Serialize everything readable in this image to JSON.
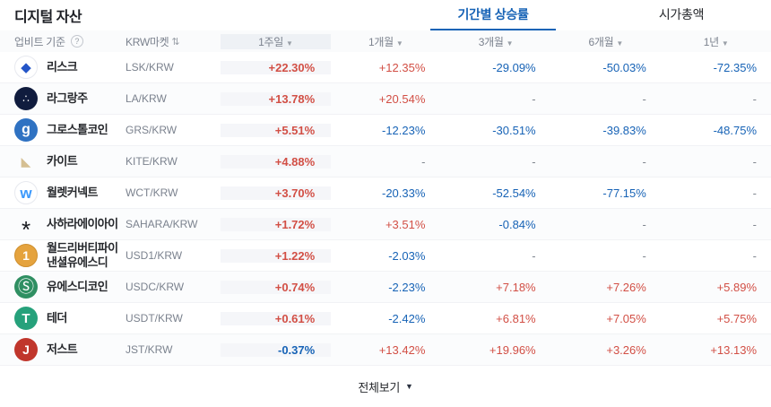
{
  "header": {
    "title": "디지털 자산",
    "tabs": [
      {
        "label": "기간별 상승률",
        "active": true
      },
      {
        "label": "시가총액",
        "active": false
      }
    ]
  },
  "table": {
    "basis_label": "업비트 기준",
    "market_label": "KRW마켓",
    "periods": [
      "1주일",
      "1개월",
      "3개월",
      "6개월",
      "1년"
    ],
    "rows": [
      {
        "name": "리스크",
        "ticker": "LSK/KRW",
        "icon": {
          "name": "lisk",
          "glyph": "◆",
          "bg": "#ffffff",
          "fg": "#2456c8",
          "border": "#e7e9ef",
          "size": 15
        },
        "values": [
          "+22.30%",
          "+12.35%",
          "-29.09%",
          "-50.03%",
          "-72.35%"
        ]
      },
      {
        "name": "라그랑주",
        "ticker": "LA/KRW",
        "icon": {
          "name": "lagrange",
          "glyph": "∴",
          "bg": "#101c3e",
          "fg": "#ffffff",
          "size": 12
        },
        "values": [
          "+13.78%",
          "+20.54%",
          "-",
          "-",
          "-"
        ]
      },
      {
        "name": "그로스톨코인",
        "ticker": "GRS/KRW",
        "icon": {
          "name": "groestlcoin",
          "glyph": "g",
          "bg": "#2f72c2",
          "fg": "#ffffff",
          "size": 16,
          "bold": true
        },
        "values": [
          "+5.51%",
          "-12.23%",
          "-30.51%",
          "-39.83%",
          "-48.75%"
        ]
      },
      {
        "name": "카이트",
        "ticker": "KITE/KRW",
        "icon": {
          "name": "kite",
          "glyph": "◣",
          "bg": "transparent",
          "fg": "#d5bf92",
          "size": 14
        },
        "values": [
          "+4.88%",
          "-",
          "-",
          "-",
          "-"
        ]
      },
      {
        "name": "월렛커넥트",
        "ticker": "WCT/KRW",
        "icon": {
          "name": "walletconnect",
          "glyph": "w",
          "bg": "#ffffff",
          "fg": "#3b99fc",
          "border": "#e7e9ef",
          "size": 17,
          "bold": true
        },
        "values": [
          "+3.70%",
          "-20.33%",
          "-52.54%",
          "-77.15%",
          "-"
        ]
      },
      {
        "name": "사하라에이아이",
        "ticker": "SAHARA/KRW",
        "icon": {
          "name": "sahara-ai",
          "glyph": "*",
          "bg": "transparent",
          "fg": "#17191e",
          "size": 26,
          "shift": 6
        },
        "values": [
          "+1.72%",
          "+3.51%",
          "-0.84%",
          "-",
          "-"
        ]
      },
      {
        "name": "월드리버티파이낸셜유에스디",
        "ticker": "USD1/KRW",
        "icon": {
          "name": "usd1",
          "glyph": "1",
          "bg": "#e5a33e",
          "fg": "#ffffff",
          "border": "#cf8f2e",
          "size": 14,
          "bold": true
        },
        "values": [
          "+1.22%",
          "-2.03%",
          "-",
          "-",
          "-"
        ]
      },
      {
        "name": "유에스디코인",
        "ticker": "USDC/KRW",
        "icon": {
          "name": "usdc",
          "glyph": "Ⓢ",
          "bg": "#2f8f62",
          "fg": "#ffffff",
          "size": 18
        },
        "values": [
          "+0.74%",
          "-2.23%",
          "+7.18%",
          "+7.26%",
          "+5.89%"
        ]
      },
      {
        "name": "테더",
        "ticker": "USDT/KRW",
        "icon": {
          "name": "tether",
          "glyph": "T",
          "bg": "#26a17b",
          "fg": "#ffffff",
          "size": 15,
          "bold": true
        },
        "values": [
          "+0.61%",
          "-2.42%",
          "+6.81%",
          "+7.05%",
          "+5.75%"
        ]
      },
      {
        "name": "저스트",
        "ticker": "JST/KRW",
        "icon": {
          "name": "just",
          "glyph": "J",
          "bg": "#c0362c",
          "fg": "#ffffff",
          "size": 14,
          "bold": true
        },
        "values": [
          "-0.37%",
          "+13.42%",
          "+19.96%",
          "+3.26%",
          "+13.13%"
        ]
      }
    ]
  },
  "footer": {
    "view_all_label": "전체보기"
  },
  "colors": {
    "up": "#d24f45",
    "down": "#1763b6",
    "accent": "#1763b6",
    "flat": "#80868f"
  }
}
